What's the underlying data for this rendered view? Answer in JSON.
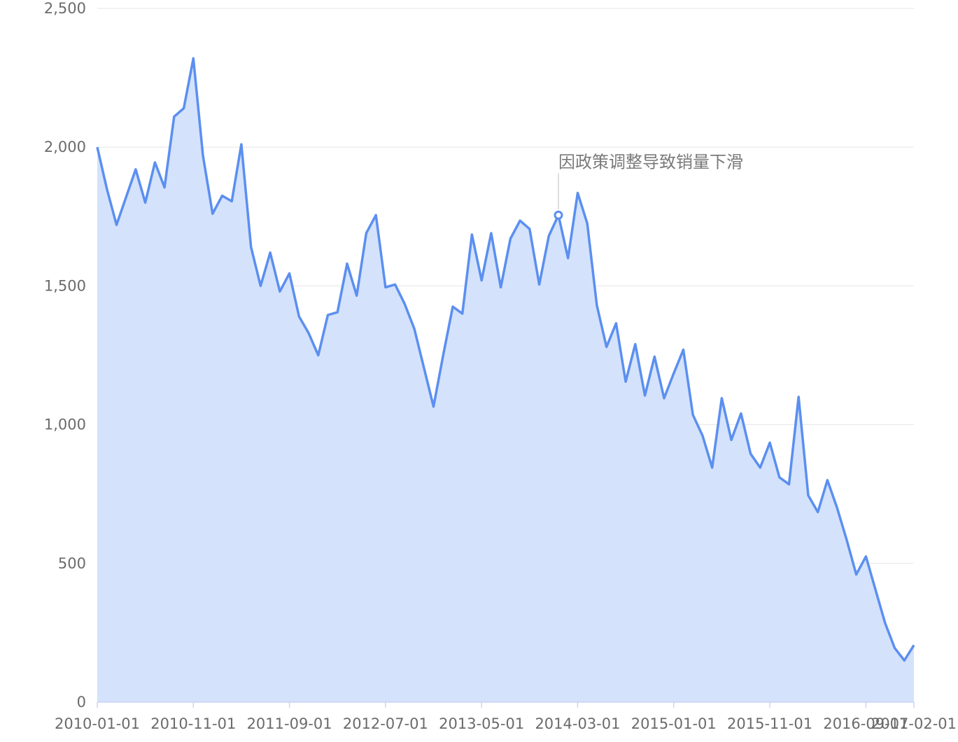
{
  "chart_data": {
    "type": "area",
    "title": "",
    "xlabel": "",
    "ylabel": "",
    "ylim": [
      0,
      2500
    ],
    "yticks": [
      "0",
      "500",
      "1,000",
      "1,500",
      "2,000",
      "2,500"
    ],
    "ytick_values": [
      0,
      500,
      1000,
      1500,
      2000,
      2500
    ],
    "xticks": [
      "2010-01-01",
      "2010-11-01",
      "2011-09-01",
      "2012-07-01",
      "2013-05-01",
      "2014-03-01",
      "2015-01-01",
      "2015-11-01",
      "2016-09-01",
      "2017-02-01"
    ],
    "x_start": "2010-01-01",
    "x_end": "2017-02-01",
    "grid": true,
    "colors": {
      "line": "#5b8ff0",
      "area": "#d4e2fb"
    },
    "series": [
      {
        "values": [
          2000,
          1850,
          1720,
          1820,
          1920,
          1800,
          1945,
          1855,
          2110,
          2140,
          2320,
          1970,
          1760,
          1825,
          1805,
          2010,
          1640,
          1500,
          1620,
          1480,
          1545,
          1390,
          1330,
          1250,
          1395,
          1405,
          1580,
          1465,
          1690,
          1755,
          1495,
          1505,
          1435,
          1345,
          1205,
          1065,
          1250,
          1425,
          1400,
          1685,
          1520,
          1690,
          1495,
          1670,
          1735,
          1705,
          1505,
          1680,
          1755,
          1600,
          1835,
          1725,
          1430,
          1280,
          1365,
          1155,
          1290,
          1105,
          1245,
          1095,
          1185,
          1270,
          1035,
          960,
          845,
          1095,
          945,
          1040,
          895,
          845,
          935,
          810,
          785,
          1100,
          745,
          685,
          800,
          700,
          585,
          460,
          525,
          405,
          285,
          195,
          150,
          205
        ]
      }
    ],
    "annotations": [
      {
        "text": "因政策调整导致销量下滑",
        "index": 48,
        "value": 1755
      }
    ]
  }
}
